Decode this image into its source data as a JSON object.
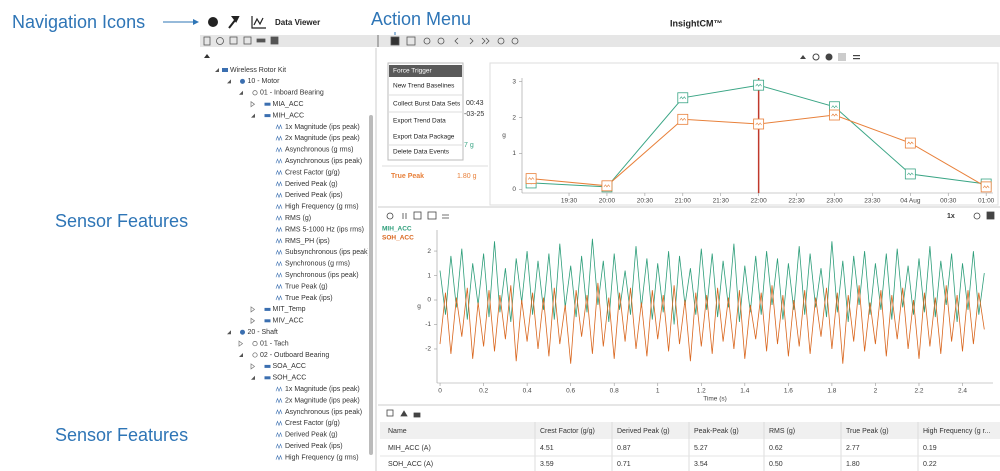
{
  "callouts": [
    "Navigation Icons",
    "Action Menu",
    "Sensor Features",
    "Sensor Features"
  ],
  "header": {
    "app": "Data Viewer",
    "brand": "InsightCM™"
  },
  "tree": {
    "label": "Wireless Rotor Kit",
    "expanded": true,
    "children": [
      {
        "label": "10 - Motor",
        "expanded": true,
        "children": [
          {
            "label": "01 - Inboard Bearing",
            "expanded": true,
            "children": [
              {
                "label": "MIA_ACC",
                "expanded": false
              },
              {
                "label": "MIH_ACC",
                "expanded": true,
                "children": [
                  {
                    "label": "1x Magnitude (ips peak)"
                  },
                  {
                    "label": "2x Magnitude (ips peak)"
                  },
                  {
                    "label": "Asynchronous (g rms)"
                  },
                  {
                    "label": "Asynchronous (ips peak)"
                  },
                  {
                    "label": "Crest Factor (g/g)"
                  },
                  {
                    "label": "Derived Peak (g)"
                  },
                  {
                    "label": "Derived Peak (ips)"
                  },
                  {
                    "label": "High Frequency (g rms)"
                  },
                  {
                    "label": "RMS (g)"
                  },
                  {
                    "label": "RMS 5-1000 Hz (ips rms)"
                  },
                  {
                    "label": "RMS_PH (ips)"
                  },
                  {
                    "label": "Subsynchronous (ips peak)"
                  },
                  {
                    "label": "Synchronous (g rms)"
                  },
                  {
                    "label": "Synchronous (ips peak)"
                  },
                  {
                    "label": "True Peak (g)"
                  },
                  {
                    "label": "True Peak (ips)"
                  }
                ]
              },
              {
                "label": "MIT_Temp",
                "expanded": false
              },
              {
                "label": "MIV_ACC",
                "expanded": false
              }
            ]
          }
        ]
      },
      {
        "label": "20 - Shaft",
        "expanded": true,
        "children": [
          {
            "label": "01 - Tach",
            "expanded": false
          },
          {
            "label": "02 - Outboard Bearing",
            "expanded": true,
            "children": [
              {
                "label": "SOA_ACC",
                "expanded": false
              },
              {
                "label": "SOH_ACC",
                "expanded": true,
                "children": [
                  {
                    "label": "1x Magnitude (ips peak)"
                  },
                  {
                    "label": "2x Magnitude (ips peak)"
                  },
                  {
                    "label": "Asynchronous (ips peak)"
                  },
                  {
                    "label": "Crest Factor (g/g)"
                  },
                  {
                    "label": "Derived Peak (g)"
                  },
                  {
                    "label": "Derived Peak (ips)"
                  },
                  {
                    "label": "High Frequency (g rms)"
                  }
                ]
              }
            ]
          }
        ]
      }
    ]
  },
  "action_menu": {
    "items": [
      "Force Trigger",
      "New Trend Baselines",
      "Collect Burst Data Sets",
      "Export Trend Data",
      "Export Data Package",
      "Delete Data Events"
    ],
    "highlighted": 0
  },
  "partial_texts": [
    "00:43",
    "-03-25",
    "7 g",
    "True Peak",
    "1.80 g"
  ],
  "zoom_label": "1x",
  "chart_data": [
    {
      "type": "line",
      "ylabel": "g",
      "x": [
        19,
        20,
        21,
        22,
        23,
        24,
        25
      ],
      "xlim": [
        18.88,
        25.09
      ],
      "xticks": [
        {
          "value": 19.5,
          "label": "19:30"
        },
        {
          "value": 20,
          "label": "20:00"
        },
        {
          "value": 20.5,
          "label": "20:30"
        },
        {
          "value": 21,
          "label": "21:00"
        },
        {
          "value": 21.5,
          "label": "21:30"
        },
        {
          "value": 22,
          "label": "22:00"
        },
        {
          "value": 22.5,
          "label": "22:30"
        },
        {
          "value": 23,
          "label": "23:00"
        },
        {
          "value": 23.5,
          "label": "23:30"
        },
        {
          "value": 24,
          "label": "04 Aug"
        },
        {
          "value": 24.5,
          "label": "00:30"
        },
        {
          "value": 25,
          "label": "01:00"
        }
      ],
      "ylim": [
        -0.1,
        3.1
      ],
      "yticks": [
        0,
        1,
        2,
        3
      ],
      "cursor_x": 22,
      "cursor_color": "#c0392b",
      "markers": true,
      "series": [
        {
          "color": "#3aa585",
          "values": [
            0.18,
            0.07,
            2.55,
            2.9,
            2.3,
            0.43,
            0.15
          ]
        },
        {
          "color": "#e8803a",
          "values": [
            0.3,
            0.1,
            1.95,
            1.82,
            2.07,
            1.29,
            0.07
          ]
        }
      ]
    },
    {
      "type": "line",
      "ylabel": "g",
      "xlabel": "Time (s)",
      "x": [
        0,
        0.025,
        0.05,
        0.075,
        0.1,
        0.125,
        0.15,
        0.175,
        0.2,
        0.225,
        0.25,
        0.275,
        0.3,
        0.325,
        0.35,
        0.375,
        0.4,
        0.425,
        0.45,
        0.475,
        0.5,
        0.525,
        0.55,
        0.575,
        0.6,
        0.625,
        0.65,
        0.675,
        0.7,
        0.725,
        0.75,
        0.775,
        0.8,
        0.825,
        0.85,
        0.875,
        0.9,
        0.925,
        0.95,
        0.975,
        1,
        1.025,
        1.05,
        1.075,
        1.1,
        1.125,
        1.15,
        1.175,
        1.2,
        1.225,
        1.25,
        1.275,
        1.3,
        1.325,
        1.35,
        1.375,
        1.4,
        1.425,
        1.45,
        1.475,
        1.5,
        1.525,
        1.55,
        1.575,
        1.6,
        1.625,
        1.65,
        1.675,
        1.7,
        1.725,
        1.75,
        1.775,
        1.8,
        1.825,
        1.85,
        1.875,
        1.9,
        1.925,
        1.95,
        1.975,
        2,
        2.025,
        2.05,
        2.075,
        2.1,
        2.125,
        2.15,
        2.175,
        2.2,
        2.225,
        2.25,
        2.275,
        2.3,
        2.325,
        2.35,
        2.375,
        2.4,
        2.425,
        2.45,
        2.475,
        2.5
      ],
      "xlim": [
        -0.014,
        2.54
      ],
      "xticks": [
        0,
        0.2,
        0.4,
        0.6,
        0.8,
        1,
        1.2,
        1.4,
        1.6,
        1.8,
        2,
        2.2,
        2.4
      ],
      "ylim": [
        -3.39,
        2.86
      ],
      "yticks": [
        -2,
        -1,
        0,
        1,
        2
      ],
      "series": [
        {
          "name": "MIH_ACC",
          "color": "#2e9e7a",
          "values": [
            1.2,
            -0.6,
            1.8,
            -0.3,
            2.1,
            -0.8,
            1.5,
            -0.2,
            1.9,
            -0.7,
            2.4,
            -0.5,
            1.3,
            -0.9,
            1.7,
            -0.1,
            2.0,
            -0.6,
            1.6,
            -0.4,
            1.9,
            -0.8,
            2.3,
            -0.3,
            1.4,
            -0.7,
            1.8,
            -0.5,
            2.5,
            -0.2,
            1.6,
            -0.9,
            1.9,
            -0.4,
            1.2,
            -0.6,
            2.2,
            -0.3,
            1.7,
            -0.8,
            1.5,
            -0.5,
            2.0,
            -1.0,
            1.8,
            -0.2,
            1.3,
            -0.6,
            2.1,
            -0.4,
            1.9,
            -0.7,
            1.6,
            -0.3,
            2.3,
            -0.9,
            1.4,
            -0.5,
            1.8,
            -0.6,
            2.0,
            -0.2,
            1.7,
            -0.8,
            1.5,
            -0.4,
            2.2,
            -0.6,
            1.9,
            -0.3,
            1.3,
            -0.7,
            2.4,
            -0.5,
            1.6,
            -0.9,
            1.8,
            -0.2,
            2.0,
            -0.6,
            1.5,
            -0.4,
            1.9,
            -0.8,
            2.1,
            -0.3,
            1.4,
            -0.6,
            1.7,
            -0.5,
            2.2,
            -0.7,
            1.6,
            -0.2,
            1.9,
            -0.9,
            1.5,
            -0.4,
            2.0,
            -0.6,
            1.1
          ]
        },
        {
          "name": "SOH_ACC",
          "color": "#d9661e",
          "values": [
            -1.8,
            0.3,
            -2.2,
            0.1,
            -1.5,
            0.5,
            -2.4,
            -0.1,
            -1.9,
            0.4,
            -2.1,
            0.2,
            -1.6,
            0.6,
            -2.5,
            0.0,
            -1.7,
            0.3,
            -2.0,
            0.1,
            -2.3,
            0.5,
            -1.8,
            -0.2,
            -2.6,
            0.4,
            -1.5,
            0.2,
            -2.2,
            0.7,
            -1.9,
            0.1,
            -2.4,
            0.3,
            -1.7,
            0.5,
            -2.0,
            -0.1,
            -2.3,
            0.4,
            -1.6,
            0.2,
            -2.1,
            0.6,
            -1.8,
            0.0,
            -2.5,
            0.3,
            -1.9,
            0.2,
            -2.2,
            0.5,
            -1.7,
            0.1,
            -2.0,
            0.4,
            -2.4,
            -0.2,
            -1.6,
            0.3,
            -2.1,
            0.6,
            -1.8,
            0.2,
            -2.3,
            0.0,
            -1.9,
            0.4,
            -2.2,
            0.1,
            -1.5,
            0.5,
            -2.0,
            0.3,
            -2.6,
            0.2,
            -1.7,
            0.6,
            -2.1,
            -0.1,
            -1.8,
            0.4,
            -2.3,
            0.2,
            -1.6,
            0.5,
            -2.0,
            0.0,
            -2.4,
            0.3,
            -1.9,
            0.1,
            -2.2,
            0.6,
            -1.7,
            0.2,
            -2.1,
            0.4,
            -1.8,
            0.3,
            -1.2
          ]
        }
      ]
    }
  ],
  "table": {
    "columns": [
      "Name",
      "Crest Factor (g/g)",
      "Derived Peak (g)",
      "Peak-Peak (g)",
      "RMS (g)",
      "True Peak (g)",
      "High Frequency (g r..."
    ],
    "rows": [
      [
        "MIH_ACC (A)",
        "4.51",
        "0.87",
        "5.27",
        "0.62",
        "2.77",
        "0.19"
      ],
      [
        "SOH_ACC (A)",
        "3.59",
        "0.71",
        "3.54",
        "0.50",
        "1.80",
        "0.22"
      ]
    ]
  }
}
